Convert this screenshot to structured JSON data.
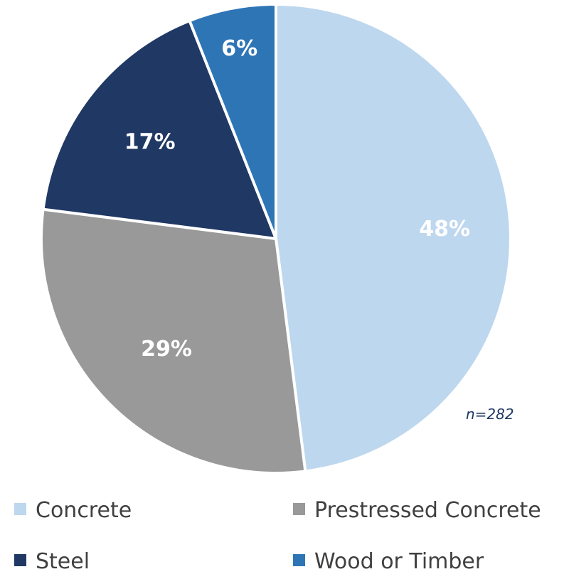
{
  "chart_data": {
    "type": "pie",
    "title": "",
    "note": "n=282",
    "legend_position": "bottom",
    "slices": [
      {
        "name": "Concrete",
        "value": 48,
        "label": "48%",
        "color": "#bdd7ee"
      },
      {
        "name": "Prestressed Concrete",
        "value": 29,
        "label": "29%",
        "color": "#999999"
      },
      {
        "name": "Steel",
        "value": 17,
        "label": "17%",
        "color": "#203864"
      },
      {
        "name": "Wood or Timber",
        "value": 6,
        "label": "6%",
        "color": "#2e75b6"
      }
    ]
  }
}
